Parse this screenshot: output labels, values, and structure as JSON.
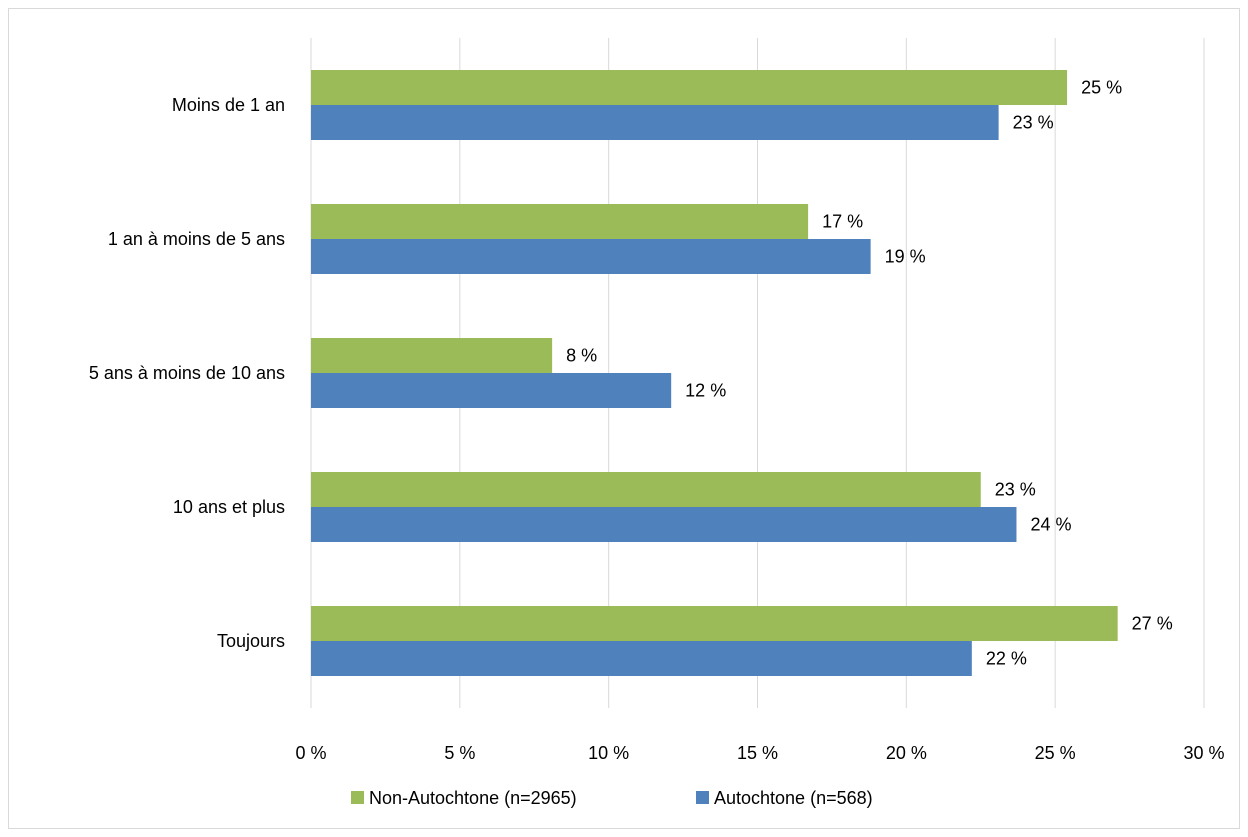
{
  "chart_data": {
    "type": "bar",
    "orientation": "horizontal",
    "categories": [
      "Moins de 1 an",
      "1 an à moins de 5 ans",
      "5 ans à moins de 10 ans",
      "10 ans et plus",
      "Toujours"
    ],
    "series": [
      {
        "name": "Non-Autochtone (n=2965)",
        "color": "#9bbb59",
        "values": [
          25.4,
          16.7,
          8.1,
          22.5,
          27.1
        ],
        "labels": [
          "25 %",
          "17 %",
          "8 %",
          "23 %",
          "27 %"
        ]
      },
      {
        "name": "Autochtone (n=568)",
        "color": "#4f81bd",
        "values": [
          23.1,
          18.8,
          12.1,
          23.7,
          22.2
        ],
        "labels": [
          "23 %",
          "19 %",
          "12 %",
          "24 %",
          "22 %"
        ]
      }
    ],
    "xlim": [
      0,
      30
    ],
    "xticks": [
      0,
      5,
      10,
      15,
      20,
      25,
      30
    ],
    "xtick_labels": [
      "0 %",
      "5 %",
      "10 %",
      "15 %",
      "20 %",
      "25 %",
      "30 %"
    ],
    "grid": true,
    "legend_position": "bottom",
    "title": "",
    "xlabel": "",
    "ylabel": ""
  }
}
